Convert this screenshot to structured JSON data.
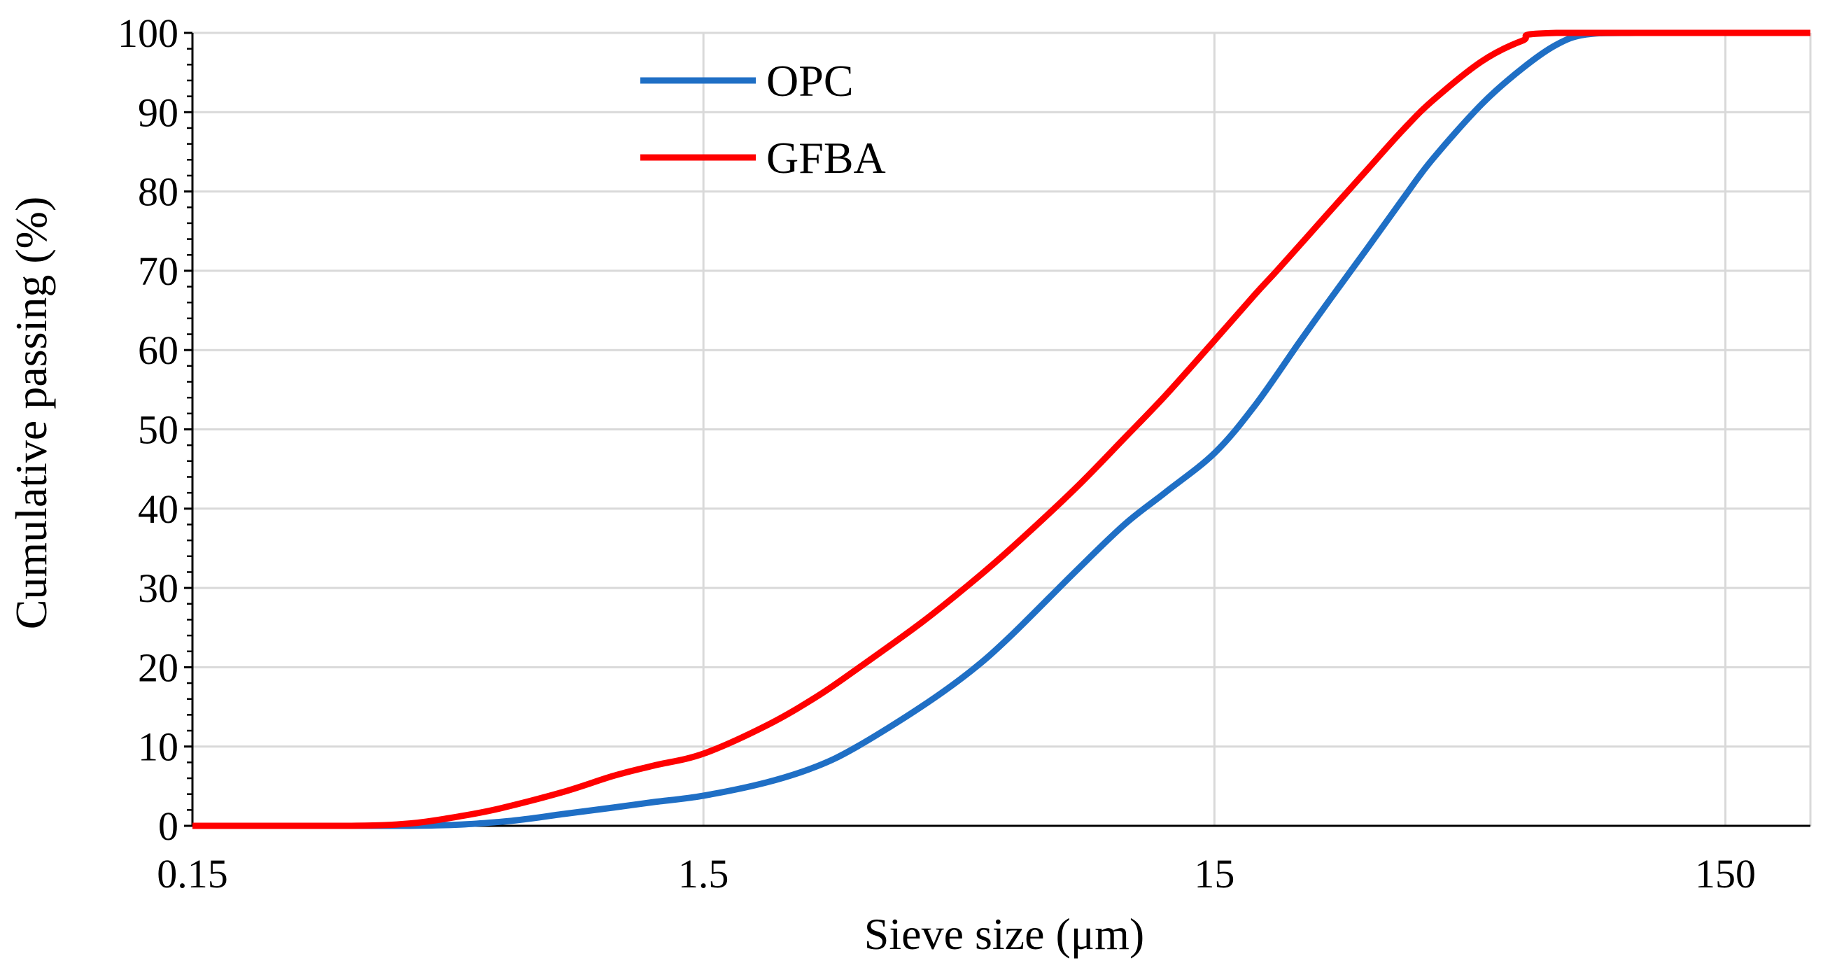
{
  "chart_data": {
    "type": "line",
    "title": "",
    "xlabel": "Sieve size (μm)",
    "ylabel": "Cumulative passing (%)",
    "xscale": "log",
    "xlim": [
      0.15,
      220
    ],
    "ylim": [
      0,
      100
    ],
    "x_ticks": [
      {
        "value": 0.15,
        "label": "0.15"
      },
      {
        "value": 1.5,
        "label": "1.5"
      },
      {
        "value": 15,
        "label": "15"
      },
      {
        "value": 150,
        "label": "150"
      }
    ],
    "y_ticks": [
      {
        "value": 0,
        "label": "0"
      },
      {
        "value": 10,
        "label": "10"
      },
      {
        "value": 20,
        "label": "20"
      },
      {
        "value": 30,
        "label": "30"
      },
      {
        "value": 40,
        "label": "40"
      },
      {
        "value": 50,
        "label": "50"
      },
      {
        "value": 60,
        "label": "60"
      },
      {
        "value": 70,
        "label": "70"
      },
      {
        "value": 80,
        "label": "80"
      },
      {
        "value": 90,
        "label": "90"
      },
      {
        "value": 100,
        "label": "100"
      }
    ],
    "grid": true,
    "legend_position": "top-center",
    "series": [
      {
        "name": "OPC",
        "color": "#1f6fc5",
        "x": [
          0.15,
          0.4,
          0.6,
          0.8,
          1.0,
          1.2,
          1.5,
          2.0,
          2.5,
          3.0,
          4.0,
          5.0,
          6.0,
          8.0,
          10,
          12,
          15,
          18,
          22,
          25,
          30,
          35,
          40,
          50,
          60,
          70,
          80,
          100,
          220
        ],
        "values": [
          0,
          0,
          0.5,
          1.5,
          2.3,
          3.0,
          3.8,
          5.5,
          7.5,
          10,
          15,
          19.5,
          24,
          32,
          38,
          42,
          47,
          53,
          61,
          66,
          73,
          79,
          84,
          91,
          95.5,
          98.5,
          99.8,
          100,
          100
        ]
      },
      {
        "name": "GFBA",
        "color": "#ff0000",
        "x": [
          0.15,
          0.3,
          0.4,
          0.5,
          0.6,
          0.8,
          1.0,
          1.2,
          1.5,
          2.0,
          2.5,
          3.0,
          4.0,
          5.0,
          6.0,
          8.0,
          10,
          12,
          15,
          18,
          20,
          25,
          30,
          35,
          40,
          50,
          60,
          70,
          220
        ],
        "values": [
          0,
          0,
          0.3,
          1.2,
          2.2,
          4.3,
          6.3,
          7.6,
          9.1,
          12.7,
          16.3,
          19.8,
          25.6,
          30.6,
          35.0,
          42.5,
          48.9,
          54.2,
          61.2,
          67.0,
          70.2,
          77.2,
          82.9,
          87.7,
          91.4,
          96.4,
          99.0,
          100,
          100
        ]
      }
    ]
  }
}
